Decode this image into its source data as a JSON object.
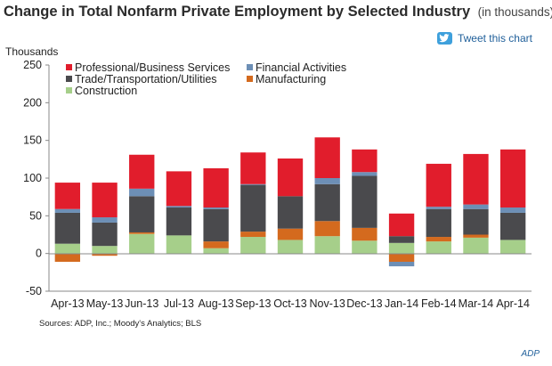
{
  "header": {
    "title": "Change in Total Nonfarm Private Employment by Selected Industry",
    "subtitle": "(in thousands)"
  },
  "tweet": {
    "label": "Tweet this chart",
    "icon": "twitter-bird-icon",
    "icon_color": "#3ea0dc"
  },
  "footer": {
    "sources": "Sources: ADP, Inc.; Moody's Analytics; BLS",
    "credit": "ADP"
  },
  "chart_data": {
    "type": "bar",
    "stacked": true,
    "title": "",
    "ylabel": "Thousands",
    "xlabel": "",
    "ylim": [
      -50,
      250
    ],
    "yticks": [
      -50,
      0,
      50,
      100,
      150,
      200,
      250
    ],
    "grid": false,
    "legend_position": "top-left",
    "categories": [
      "Apr-13",
      "May-13",
      "Jun-13",
      "Jul-13",
      "Aug-13",
      "Sep-13",
      "Oct-13",
      "Nov-13",
      "Dec-13",
      "Jan-14",
      "Feb-14",
      "Mar-14",
      "Apr-14"
    ],
    "series": [
      {
        "name": "Construction",
        "color": "#a6cf8a",
        "values": [
          13,
          10,
          26,
          24,
          7,
          22,
          18,
          23,
          17,
          14,
          16,
          21,
          18
        ]
      },
      {
        "name": "Manufacturing",
        "color": "#d46a1e",
        "values": [
          -11,
          -3,
          2,
          0,
          9,
          7,
          15,
          20,
          17,
          -11,
          6,
          4,
          0
        ]
      },
      {
        "name": "Trade/Transportation/Utilities",
        "color": "#4a4a4d",
        "values": [
          41,
          31,
          48,
          37,
          43,
          62,
          43,
          49,
          69,
          9,
          37,
          34,
          36
        ]
      },
      {
        "name": "Financial Activities",
        "color": "#6d8fb6",
        "values": [
          5,
          7,
          10,
          2,
          2,
          1,
          0,
          8,
          5,
          -6,
          3,
          6,
          7
        ]
      },
      {
        "name": "Professional/Business Services",
        "color": "#e11d2c",
        "values": [
          35,
          46,
          45,
          46,
          52,
          42,
          50,
          54,
          30,
          30,
          57,
          67,
          77
        ]
      }
    ],
    "legend_order": [
      "Professional/Business Services",
      "Financial Activities",
      "Trade/Transportation/Utilities",
      "Manufacturing",
      "Construction"
    ]
  }
}
